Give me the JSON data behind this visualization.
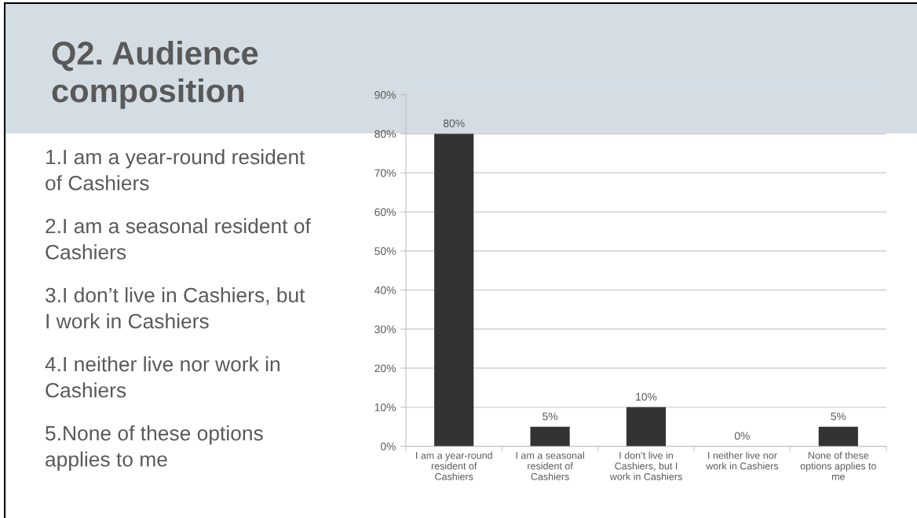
{
  "chart_data": {
    "type": "bar",
    "title": "Q2. Audience composition",
    "categories": [
      "I am a year-round resident of Cashiers",
      "I am a seasonal resident of Cashiers",
      "I don’t live in Cashiers, but I work in Cashiers",
      "I neither live nor work in Cashiers",
      "None of these options applies to me"
    ],
    "values": [
      80,
      5,
      10,
      0,
      5
    ],
    "color": "#333333",
    "value_labels": [
      "80%",
      "5%",
      "10%",
      "0%",
      "5%"
    ],
    "ylim": [
      0,
      90
    ],
    "yticks": [
      {
        "value": 0,
        "label": "0%"
      },
      {
        "value": 10,
        "label": "10%"
      },
      {
        "value": 20,
        "label": "20%"
      },
      {
        "value": 30,
        "label": "30%"
      },
      {
        "value": 40,
        "label": "40%"
      },
      {
        "value": 50,
        "label": "50%"
      },
      {
        "value": 60,
        "label": "60%"
      },
      {
        "value": 70,
        "label": "70%"
      },
      {
        "value": 80,
        "label": "80%"
      },
      {
        "value": 90,
        "label": "90%"
      }
    ],
    "grid": "y",
    "bands": [
      {
        "axis": "y",
        "from": 80,
        "to": 90,
        "color": "#d3dde3"
      }
    ],
    "annotations": [
      "1.I am a year-round resident of Cashiers",
      "2.I am a seasonal resident of Cashiers",
      "3.I don’t live in Cashiers, but I work in Cashiers",
      "4.I neither live nor work in Cashiers",
      "5.None of these options applies to me"
    ]
  }
}
